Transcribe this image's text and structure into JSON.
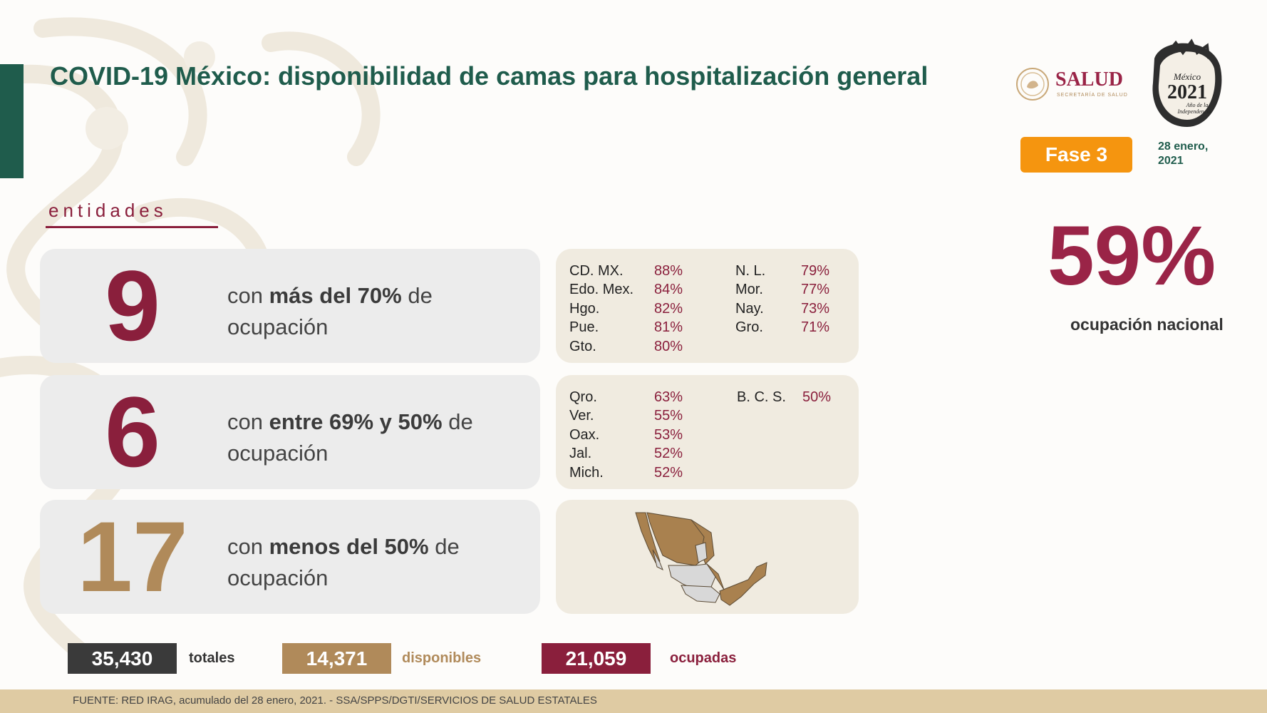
{
  "header": {
    "title": "COVID-19 México: disponibilidad de camas para hospitalización general",
    "salud_logo": "SALUD",
    "salud_subtitle": "SECRETARÍA DE SALUD",
    "mexico_logo": {
      "line1": "México",
      "year": "2021",
      "line2": "Año de la",
      "line3": "Independencia"
    },
    "phase_badge": "Fase 3",
    "date_line1": "28 enero,",
    "date_line2": "2021"
  },
  "section_label": "entidades",
  "rows": [
    {
      "count": "9",
      "count_color": "#8a1f3c",
      "desc_pre": "con ",
      "desc_bold": "más del 70%",
      "desc_post": " de",
      "desc_line2": "ocupación"
    },
    {
      "count": "6",
      "count_color": "#8a1f3c",
      "desc_pre": "con ",
      "desc_bold": "entre 69% y 50%",
      "desc_post": " de",
      "desc_line2": "ocupación"
    },
    {
      "count": "17",
      "count_color": "#b08a5a",
      "desc_pre": "con ",
      "desc_bold": "menos del 50%",
      "desc_post": " de",
      "desc_line2": "ocupación"
    }
  ],
  "states_high": {
    "left": [
      {
        "name": "CD. MX.",
        "pct": "88%"
      },
      {
        "name": "Edo. Mex.",
        "pct": "84%"
      },
      {
        "name": "Hgo.",
        "pct": "82%"
      },
      {
        "name": "Pue.",
        "pct": "81%"
      },
      {
        "name": "Gto.",
        "pct": "80%"
      }
    ],
    "right": [
      {
        "name": "N. L.",
        "pct": "79%"
      },
      {
        "name": "Mor.",
        "pct": "77%"
      },
      {
        "name": "Nay.",
        "pct": "73%"
      },
      {
        "name": "Gro.",
        "pct": "71%"
      }
    ]
  },
  "states_mid": {
    "left": [
      {
        "name": "Qro.",
        "pct": "63%"
      },
      {
        "name": "Ver.",
        "pct": "55%"
      },
      {
        "name": "Oax.",
        "pct": "53%"
      },
      {
        "name": "Jal.",
        "pct": "52%"
      },
      {
        "name": "Mich.",
        "pct": "52%"
      }
    ],
    "right": [
      {
        "name": "B. C. S.",
        "pct": "50%"
      }
    ]
  },
  "national": {
    "value": "59%",
    "label": "ocupación nacional"
  },
  "totals": [
    {
      "value": "35,430",
      "label": "totales",
      "color": "#3a3a3a",
      "label_color": "#333333"
    },
    {
      "value": "14,371",
      "label": "disponibles",
      "color": "#b08a5a",
      "label_color": "#b08a5a"
    },
    {
      "value": "21,059",
      "label": "ocupadas",
      "color": "#8a1f3c",
      "label_color": "#8a1f3c"
    }
  ],
  "footer": "FUENTE: RED IRAG, acumulado del 28 enero, 2021. -  SSA/SPPS/DGTI/SERVICIOS DE SALUD ESTATALES",
  "colors": {
    "brand_green": "#1f5c4c",
    "guinda": "#8a1f3c",
    "gold": "#b08a5a",
    "orange": "#f5950f"
  }
}
